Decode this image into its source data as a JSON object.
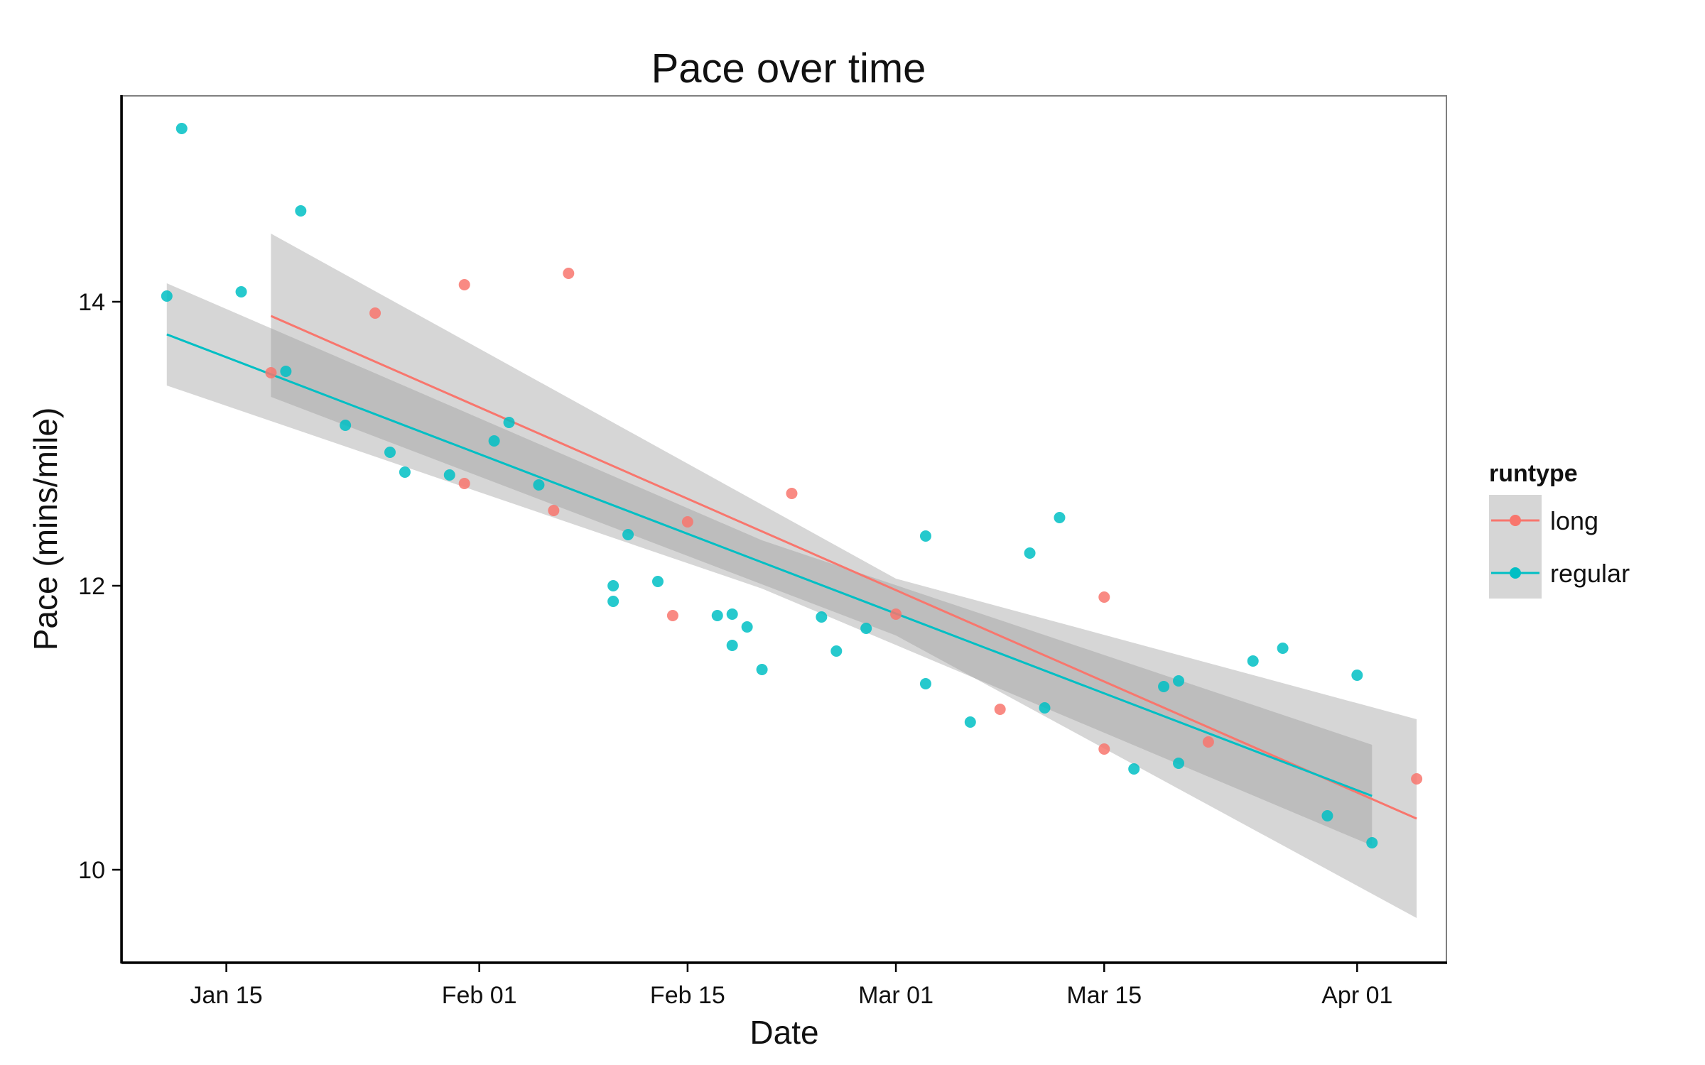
{
  "chart_data": {
    "type": "scatter",
    "title": "Pace over time",
    "xlabel": "Date",
    "ylabel": "Pace (mins/mile)",
    "x_range": [
      "2015-01-08",
      "2015-04-07"
    ],
    "ylim": [
      9.35,
      15.45
    ],
    "x_ticks": [
      {
        "date": "2015-01-15",
        "label": "Jan 15"
      },
      {
        "date": "2015-02-01",
        "label": "Feb 01"
      },
      {
        "date": "2015-02-15",
        "label": "Feb 15"
      },
      {
        "date": "2015-03-01",
        "label": "Mar 01"
      },
      {
        "date": "2015-03-15",
        "label": "Mar 15"
      },
      {
        "date": "2015-04-01",
        "label": "Apr 01"
      }
    ],
    "y_ticks": [
      10,
      12,
      14
    ],
    "grid": false,
    "legend": {
      "title": "runtype",
      "position": "right"
    },
    "series": [
      {
        "name": "long",
        "color": "#F8766D",
        "points": [
          {
            "x": "2015-01-18",
            "y": 13.5
          },
          {
            "x": "2015-01-25",
            "y": 13.92
          },
          {
            "x": "2015-01-31",
            "y": 12.72
          },
          {
            "x": "2015-01-31",
            "y": 14.12
          },
          {
            "x": "2015-02-06",
            "y": 12.53
          },
          {
            "x": "2015-02-07",
            "y": 14.2
          },
          {
            "x": "2015-02-14",
            "y": 11.79
          },
          {
            "x": "2015-02-15",
            "y": 12.45
          },
          {
            "x": "2015-02-22",
            "y": 12.65
          },
          {
            "x": "2015-03-01",
            "y": 11.8
          },
          {
            "x": "2015-03-08",
            "y": 11.13
          },
          {
            "x": "2015-03-15",
            "y": 11.92
          },
          {
            "x": "2015-03-15",
            "y": 10.85
          },
          {
            "x": "2015-03-22",
            "y": 10.9
          },
          {
            "x": "2015-04-05",
            "y": 10.64
          }
        ],
        "trend": {
          "x0": "2015-01-18",
          "y0": 13.9,
          "x1": "2015-04-05",
          "y1": 10.36
        },
        "band": {
          "x": [
            "2015-01-18",
            "2015-03-01",
            "2015-04-05"
          ],
          "lower": [
            13.33,
            11.65,
            9.66
          ],
          "upper": [
            14.48,
            12.05,
            11.06
          ]
        }
      },
      {
        "name": "regular",
        "color": "#00BFC4",
        "points": [
          {
            "x": "2015-01-11",
            "y": 14.04
          },
          {
            "x": "2015-01-12",
            "y": 15.22
          },
          {
            "x": "2015-01-16",
            "y": 14.07
          },
          {
            "x": "2015-01-19",
            "y": 13.51
          },
          {
            "x": "2015-01-20",
            "y": 14.64
          },
          {
            "x": "2015-01-23",
            "y": 13.13
          },
          {
            "x": "2015-01-26",
            "y": 12.94
          },
          {
            "x": "2015-01-27",
            "y": 12.8
          },
          {
            "x": "2015-01-30",
            "y": 12.78
          },
          {
            "x": "2015-02-02",
            "y": 13.02
          },
          {
            "x": "2015-02-03",
            "y": 13.15
          },
          {
            "x": "2015-02-05",
            "y": 12.71
          },
          {
            "x": "2015-02-10",
            "y": 12.0
          },
          {
            "x": "2015-02-10",
            "y": 11.89
          },
          {
            "x": "2015-02-11",
            "y": 12.36
          },
          {
            "x": "2015-02-13",
            "y": 12.03
          },
          {
            "x": "2015-02-17",
            "y": 11.79
          },
          {
            "x": "2015-02-18",
            "y": 11.8
          },
          {
            "x": "2015-02-18",
            "y": 11.58
          },
          {
            "x": "2015-02-19",
            "y": 11.71
          },
          {
            "x": "2015-02-20",
            "y": 11.41
          },
          {
            "x": "2015-02-24",
            "y": 11.78
          },
          {
            "x": "2015-02-25",
            "y": 11.54
          },
          {
            "x": "2015-02-27",
            "y": 11.7
          },
          {
            "x": "2015-03-03",
            "y": 12.35
          },
          {
            "x": "2015-03-03",
            "y": 11.31
          },
          {
            "x": "2015-03-06",
            "y": 11.04
          },
          {
            "x": "2015-03-10",
            "y": 12.23
          },
          {
            "x": "2015-03-11",
            "y": 11.14
          },
          {
            "x": "2015-03-12",
            "y": 12.48
          },
          {
            "x": "2015-03-17",
            "y": 10.71
          },
          {
            "x": "2015-03-19",
            "y": 11.29
          },
          {
            "x": "2015-03-20",
            "y": 11.33
          },
          {
            "x": "2015-03-20",
            "y": 10.75
          },
          {
            "x": "2015-03-25",
            "y": 11.47
          },
          {
            "x": "2015-03-27",
            "y": 11.56
          },
          {
            "x": "2015-03-30",
            "y": 10.38
          },
          {
            "x": "2015-04-01",
            "y": 11.37
          },
          {
            "x": "2015-04-02",
            "y": 10.19
          }
        ],
        "trend": {
          "x0": "2015-01-11",
          "y0": 13.77,
          "x1": "2015-04-02",
          "y1": 10.52
        },
        "band": {
          "x": [
            "2015-01-11",
            "2015-02-20",
            "2015-04-02"
          ],
          "lower": [
            13.41,
            11.98,
            10.17
          ],
          "upper": [
            14.13,
            12.32,
            10.88
          ]
        }
      }
    ]
  }
}
